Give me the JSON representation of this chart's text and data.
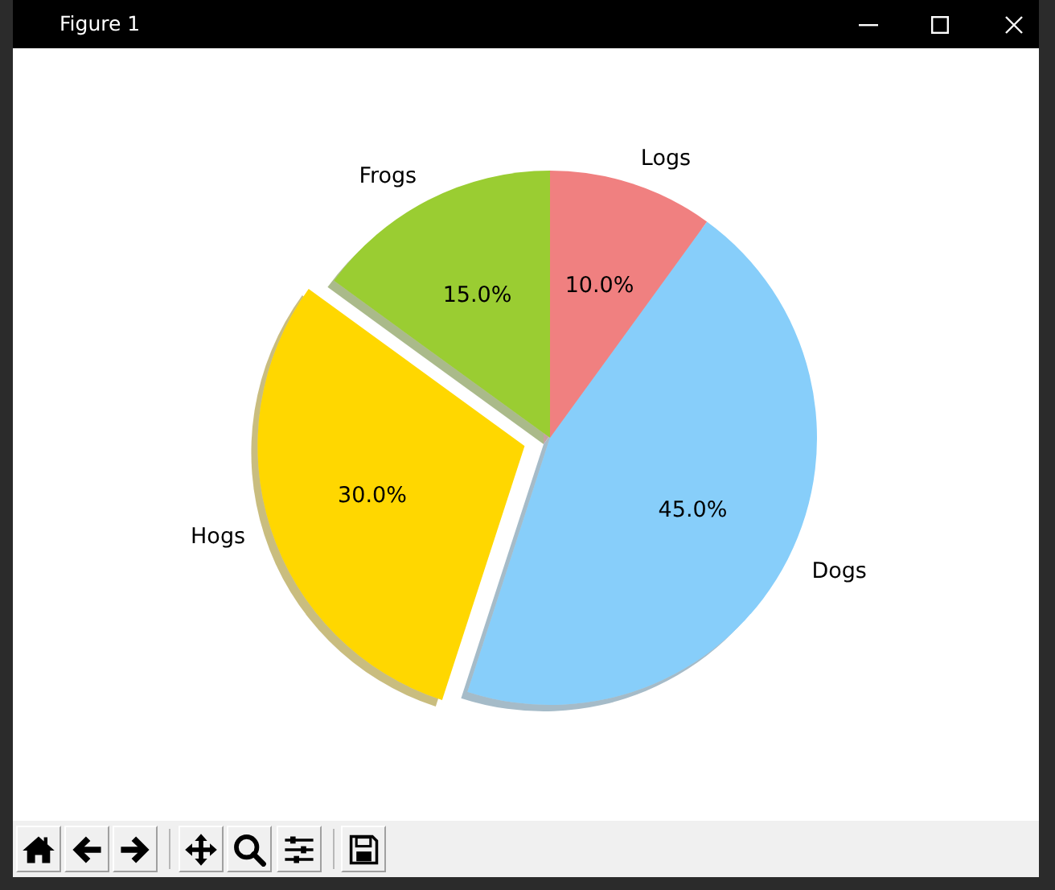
{
  "chart_data": {
    "type": "pie",
    "title": "Figure 1",
    "categories": [
      "Frogs",
      "Hogs",
      "Dogs",
      "Logs"
    ],
    "values": [
      15,
      30,
      45,
      10
    ],
    "colors": [
      "#9acd32",
      "#ffd700",
      "#87cefa",
      "#f08080"
    ],
    "value_labels": [
      "15.0%",
      "30.0%",
      "45.0%",
      "10.0%"
    ]
  }
}
